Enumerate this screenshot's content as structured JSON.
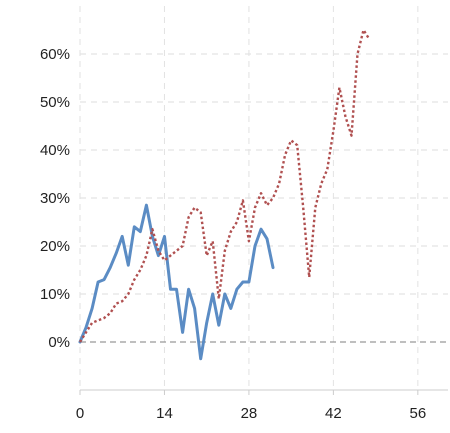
{
  "chart_data": {
    "type": "line",
    "x_ticks": [
      0,
      14,
      28,
      42,
      56
    ],
    "y_ticks": [
      0,
      10,
      20,
      30,
      40,
      50,
      60
    ],
    "y_tick_labels": [
      "0%",
      "10%",
      "20%",
      "30%",
      "40%",
      "50%",
      "60%"
    ],
    "xlim": [
      0,
      61
    ],
    "ylim": [
      -10,
      70
    ],
    "grid": true,
    "zero_line": true,
    "series": [
      {
        "color": "#5b8cc4",
        "style": "solid",
        "x": [
          0,
          1,
          2,
          3,
          4,
          5,
          6,
          7,
          8,
          9,
          10,
          11,
          12,
          13,
          14,
          15,
          16,
          17,
          18,
          19,
          20,
          21,
          22,
          23,
          24,
          25,
          26,
          27,
          28,
          29,
          30,
          31,
          32
        ],
        "y": [
          0,
          3,
          7,
          12.5,
          13,
          15.5,
          18.5,
          22,
          16,
          24,
          23,
          28.5,
          22,
          18,
          22,
          11,
          11,
          2,
          11,
          7,
          -3.5,
          4,
          10,
          3.5,
          10,
          7,
          11,
          12.5,
          12.5,
          20,
          23.5,
          21.5,
          15.5
        ]
      },
      {
        "color": "#b05050",
        "style": "dotted",
        "x": [
          0,
          1,
          2,
          3,
          4,
          5,
          6,
          7,
          8,
          9,
          10,
          11,
          12,
          13,
          14,
          15,
          16,
          17,
          18,
          19,
          20,
          21,
          22,
          23,
          24,
          25,
          26,
          27,
          28,
          29,
          30,
          31,
          32,
          33,
          34,
          35,
          36,
          37,
          38,
          39,
          40,
          41,
          42,
          43,
          44,
          45,
          46,
          47,
          48
        ],
        "y": [
          0,
          2,
          4,
          4.5,
          5,
          6,
          8,
          8.5,
          10,
          13,
          15,
          18,
          23.5,
          19,
          17,
          18,
          19,
          20,
          26,
          28,
          27,
          18,
          21,
          9,
          19,
          23,
          25,
          29.5,
          21,
          28,
          31,
          28.5,
          30,
          33,
          39,
          42,
          41,
          28,
          13.5,
          28,
          33,
          36,
          44,
          53,
          47,
          43,
          60,
          65,
          63
        ]
      }
    ]
  }
}
